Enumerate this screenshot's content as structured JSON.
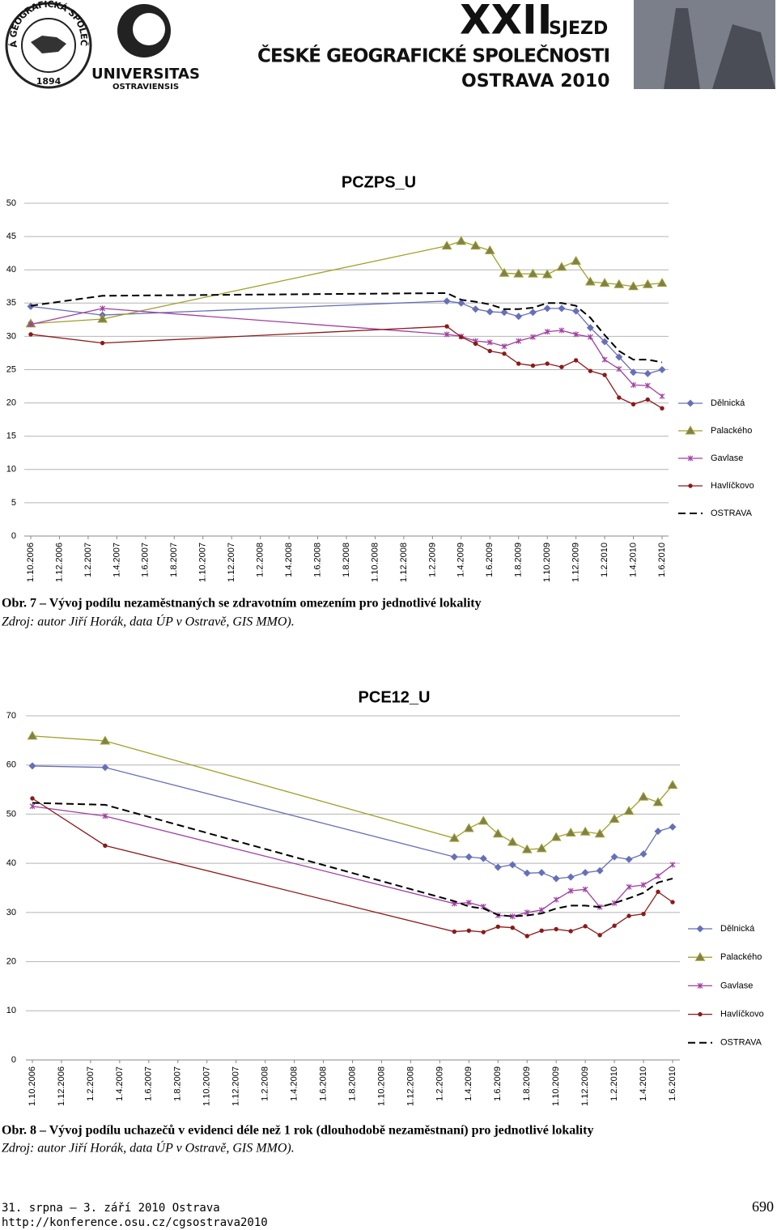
{
  "header": {
    "society_seal": "ČESKÁ GEOGRAFICKÁ SPOLEČNOST",
    "seal_year": "1894",
    "university": "UNIVERSITAS",
    "university_sub": "OSTRAVIENSIS",
    "congress_number": "XXII",
    "congress": "SJEZD",
    "society": "ČESKÉ GEOGRAFICKÉ SPOLEČNOSTI",
    "venue": "OSTRAVA 2010"
  },
  "chart_data": [
    {
      "type": "line",
      "title": "PCZPS_U",
      "x": [
        "1.10.2006",
        "1.3.2007",
        "1.3.2009",
        "1.4.2009",
        "1.5.2009",
        "1.6.2009",
        "1.7.2009",
        "1.8.2009",
        "1.9.2009",
        "1.10.2009",
        "1.11.2009",
        "1.12.2009",
        "1.1.2010",
        "1.2.2010",
        "1.3.2010",
        "1.4.2010",
        "1.5.2010",
        "1.6.2010"
      ],
      "xlim": [
        "1.10.2006",
        "1.6.2010"
      ],
      "xticks": [
        "1.10.2006",
        "1.12.2006",
        "1.2.2007",
        "1.4.2007",
        "1.6.2007",
        "1.8.2007",
        "1.10.2007",
        "1.12.2007",
        "1.2.2008",
        "1.4.2008",
        "1.6.2008",
        "1.8.2008",
        "1.10.2008",
        "1.12.2008",
        "1.2.2009",
        "1.4.2009",
        "1.6.2009",
        "1.8.2009",
        "1.10.2009",
        "1.12.2009",
        "1.2.2010",
        "1.4.2010",
        "1.6.2010"
      ],
      "ylim": [
        0,
        50
      ],
      "yticks": [
        0,
        5,
        10,
        15,
        20,
        25,
        30,
        35,
        40,
        45,
        50
      ],
      "grid": true,
      "legend": "right",
      "series": [
        {
          "name": "Dělnická",
          "color": "#6670b8",
          "marker": "diamond",
          "line_style": "solid",
          "values": [
            34.5,
            33.2,
            35.3,
            35.0,
            34.1,
            33.7,
            33.6,
            33.0,
            33.6,
            34.2,
            34.2,
            33.8,
            31.3,
            29.2,
            26.9,
            24.6,
            24.4,
            25.0
          ]
        },
        {
          "name": "Palackého",
          "color": "#a0a028",
          "marker": "triangle",
          "line_style": "solid",
          "values": [
            31.9,
            32.6,
            43.6,
            44.3,
            43.6,
            42.9,
            39.5,
            39.4,
            39.4,
            39.3,
            40.4,
            41.3,
            38.2,
            38.0,
            37.8,
            37.5,
            37.8,
            38.0
          ]
        },
        {
          "name": "Gavlase",
          "color": "#a040a0",
          "marker": "star",
          "line_style": "solid",
          "values": [
            31.8,
            34.2,
            30.3,
            30.0,
            29.3,
            29.1,
            28.5,
            29.3,
            29.9,
            30.7,
            30.9,
            30.3,
            29.9,
            26.5,
            25.1,
            22.7,
            22.6,
            21.0
          ]
        },
        {
          "name": "Havlíčkovo",
          "color": "#8b1a1a",
          "marker": "circle",
          "line_style": "solid",
          "values": [
            30.3,
            29.0,
            31.5,
            29.9,
            28.9,
            27.8,
            27.4,
            25.9,
            25.6,
            25.9,
            25.4,
            26.4,
            24.8,
            24.2,
            20.8,
            19.8,
            20.5,
            19.2
          ]
        },
        {
          "name": "OSTRAVA",
          "color": "#000000",
          "marker": "none",
          "line_style": "dashed",
          "values": [
            34.6,
            36.1,
            36.5,
            35.5,
            35.2,
            34.8,
            34.1,
            34.1,
            34.3,
            35.0,
            35.0,
            34.6,
            32.8,
            30.2,
            27.8,
            26.5,
            26.5,
            26.1
          ]
        }
      ]
    },
    {
      "type": "line",
      "title": "PCE12_U",
      "x": [
        "1.10.2006",
        "1.3.2007",
        "1.3.2009",
        "1.4.2009",
        "1.5.2009",
        "1.6.2009",
        "1.7.2009",
        "1.8.2009",
        "1.9.2009",
        "1.10.2009",
        "1.11.2009",
        "1.12.2009",
        "1.1.2010",
        "1.2.2010",
        "1.3.2010",
        "1.4.2010",
        "1.5.2010",
        "1.6.2010"
      ],
      "xlim": [
        "1.10.2006",
        "1.6.2010"
      ],
      "xticks": [
        "1.10.2006",
        "1.12.2006",
        "1.2.2007",
        "1.4.2007",
        "1.6.2007",
        "1.8.2007",
        "1.10.2007",
        "1.12.2007",
        "1.2.2008",
        "1.4.2008",
        "1.6.2008",
        "1.8.2008",
        "1.10.2008",
        "1.12.2008",
        "1.2.2009",
        "1.4.2009",
        "1.6.2009",
        "1.8.2009",
        "1.10.2009",
        "1.12.2009",
        "1.2.2010",
        "1.4.2010",
        "1.6.2010"
      ],
      "ylim": [
        0,
        70
      ],
      "yticks": [
        0,
        10,
        20,
        30,
        40,
        50,
        60,
        70
      ],
      "grid": true,
      "legend": "right",
      "series": [
        {
          "name": "Dělnická",
          "color": "#6670b8",
          "marker": "diamond",
          "line_style": "solid",
          "values": [
            59.8,
            59.5,
            41.3,
            41.3,
            41.0,
            39.2,
            39.7,
            38.0,
            38.1,
            36.9,
            37.2,
            38.1,
            38.5,
            41.3,
            40.8,
            41.9,
            46.5,
            47.4
          ]
        },
        {
          "name": "Palackého",
          "color": "#a0a028",
          "marker": "triangle",
          "line_style": "solid",
          "values": [
            65.9,
            64.9,
            45.1,
            47.1,
            48.6,
            46.0,
            44.3,
            42.8,
            43.0,
            45.3,
            46.2,
            46.4,
            46.0,
            49.0,
            50.6,
            53.5,
            52.4,
            55.9
          ]
        },
        {
          "name": "Gavlase",
          "color": "#a040a0",
          "marker": "star",
          "line_style": "solid",
          "values": [
            51.6,
            49.6,
            31.8,
            32.0,
            31.2,
            29.4,
            29.2,
            30.0,
            30.5,
            32.6,
            34.4,
            34.7,
            31.1,
            31.9,
            35.2,
            35.6,
            37.4,
            39.7
          ]
        },
        {
          "name": "Havlíčkovo",
          "color": "#8b1a1a",
          "marker": "circle",
          "line_style": "solid",
          "values": [
            53.2,
            43.6,
            26.1,
            26.3,
            26.0,
            27.1,
            26.9,
            25.2,
            26.3,
            26.6,
            26.2,
            27.2,
            25.4,
            27.3,
            29.3,
            29.7,
            34.2,
            32.1
          ]
        },
        {
          "name": "OSTRAVA",
          "color": "#000000",
          "marker": "none",
          "line_style": "dashed",
          "values": [
            52.3,
            51.9,
            32.3,
            31.2,
            30.8,
            29.5,
            29.2,
            29.4,
            29.8,
            30.8,
            31.4,
            31.4,
            31.1,
            31.9,
            32.9,
            34.0,
            36.1,
            36.9
          ]
        }
      ]
    }
  ],
  "captions": [
    {
      "figure": "Obr. 7 – Vývoj podílu nezaměstnaných se zdravotním omezením pro jednotlivé lokality",
      "source": "Zdroj: autor Jiří Horák, data ÚP v Ostravě, GIS MMO)."
    },
    {
      "figure": "Obr. 8 – Vývoj podílu uchazečů v evidenci déle než 1 rok (dlouhodobě nezaměstnaní) pro jednotlivé lokality",
      "source": "Zdroj: autor Jiří Horák, data ÚP v Ostravě, GIS MMO)."
    }
  ],
  "footer": {
    "dates": "31. srpna – 3. září 2010 Ostrava",
    "url": "http://konference.osu.cz/cgsostrava2010",
    "page": "690"
  }
}
